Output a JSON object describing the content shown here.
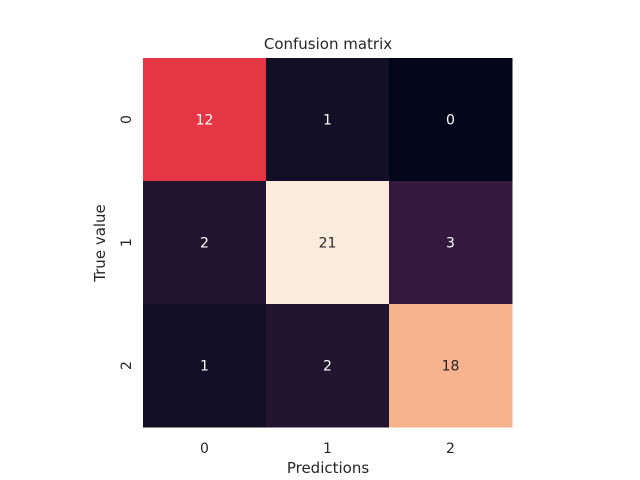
{
  "chart_data": {
    "type": "heatmap",
    "title": "Confusion matrix",
    "xlabel": "Predictions",
    "ylabel": "True value",
    "x_categories": [
      "0",
      "1",
      "2"
    ],
    "y_categories": [
      "0",
      "1",
      "2"
    ],
    "values": [
      [
        12,
        1,
        0
      ],
      [
        2,
        21,
        3
      ],
      [
        1,
        2,
        18
      ]
    ],
    "colorbar": false,
    "colormap": "rocket",
    "value_range": [
      0,
      21
    ]
  }
}
